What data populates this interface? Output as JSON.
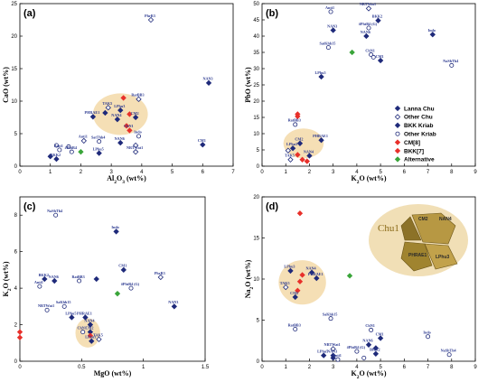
{
  "colors": {
    "lanna": "#1f2a7a",
    "other_chu": "#1f2a7a",
    "bkk": "#1f2a7a",
    "cm": "#e8302a",
    "bkk7": "#e8302a",
    "alternative": "#3aa53a",
    "cluster": "#f3d9a8"
  },
  "legend": [
    {
      "label": "Lanna Chu",
      "marker": "diamond-filled",
      "color": "#1f2a7a"
    },
    {
      "label": "Other Chu",
      "marker": "diamond-open",
      "color": "#1f2a7a"
    },
    {
      "label": "BKK Kriab",
      "marker": "diamond-filled",
      "color": "#1f2a7a"
    },
    {
      "label": "Other Kriab",
      "marker": "circle-open",
      "color": "#1f2a7a"
    },
    {
      "label": "CM[8]",
      "marker": "diamond-filled",
      "color": "#e8302a"
    },
    {
      "label": "BKK[7]",
      "marker": "diamond-filled",
      "color": "#e8302a"
    },
    {
      "label": "Alternative",
      "marker": "diamond-filled",
      "color": "#3aa53a"
    }
  ],
  "inset": {
    "title": "Chu1",
    "labels": [
      "CM2",
      "NAN4",
      "PHRAE1",
      "LPhu3"
    ]
  },
  "chart_data": [
    {
      "type": "scatter",
      "panel": "(a)",
      "xlabel": "Al2O3 (wt%)",
      "ylabel": "CaO (wt%)",
      "xlim": [
        0,
        7
      ],
      "ylim": [
        0,
        25
      ],
      "xticks": [
        0,
        1,
        2,
        3,
        4,
        5,
        6,
        7
      ],
      "yticks": [
        0,
        5,
        10,
        15,
        20,
        25
      ],
      "points": [
        {
          "x": 4.3,
          "y": 22.5,
          "label": "PhrR3",
          "m": "open"
        },
        {
          "x": 6.2,
          "y": 12.8,
          "label": "NAN3",
          "m": "filled"
        },
        {
          "x": 3.4,
          "y": 10.5,
          "label": "",
          "m": "red"
        },
        {
          "x": 3.9,
          "y": 10.3,
          "label": "RatBB3",
          "m": "open"
        },
        {
          "x": 2.9,
          "y": 9.0,
          "label": "TAK5",
          "m": "open"
        },
        {
          "x": 3.3,
          "y": 8.6,
          "label": "LPhu3",
          "m": "filled"
        },
        {
          "x": 2.8,
          "y": 8.2,
          "label": "",
          "m": "filled"
        },
        {
          "x": 3.6,
          "y": 8.0,
          "label": "",
          "m": "red"
        },
        {
          "x": 3.8,
          "y": 7.5,
          "label": "CM2",
          "m": "filled"
        },
        {
          "x": 3.2,
          "y": 7.2,
          "label": "NAN4",
          "m": "filled"
        },
        {
          "x": 2.4,
          "y": 7.6,
          "label": "PHRAE1",
          "m": "filled"
        },
        {
          "x": 3.5,
          "y": 6.2,
          "label": "",
          "m": "red"
        },
        {
          "x": 3.6,
          "y": 5.5,
          "label": "ChN1",
          "m": "red"
        },
        {
          "x": 3.9,
          "y": 4.6,
          "label": "Indo",
          "m": "circle"
        },
        {
          "x": 6.0,
          "y": 3.3,
          "label": "CM1",
          "m": "filled"
        },
        {
          "x": 2.6,
          "y": 3.8,
          "label": "SatThh4",
          "m": "circle"
        },
        {
          "x": 3.3,
          "y": 3.6,
          "label": "NAN6",
          "m": "filled"
        },
        {
          "x": 3.8,
          "y": 3.2,
          "label": "",
          "m": "open"
        },
        {
          "x": 2.1,
          "y": 3.9,
          "label": "Anti1",
          "m": "open"
        },
        {
          "x": 1.2,
          "y": 3.2,
          "label": "",
          "m": "circle"
        },
        {
          "x": 1.6,
          "y": 3.0,
          "label": "",
          "m": "circle"
        },
        {
          "x": 1.3,
          "y": 2.5,
          "label": "Anti1",
          "m": "circle"
        },
        {
          "x": 1.7,
          "y": 2.2,
          "label": "#PhtB4",
          "m": "circle"
        },
        {
          "x": 2.0,
          "y": 2.2,
          "label": "",
          "m": "green"
        },
        {
          "x": 2.6,
          "y": 2.0,
          "label": "LPhu5",
          "m": "filled"
        },
        {
          "x": 3.8,
          "y": 2.2,
          "label": "NRTWat1",
          "m": "open"
        },
        {
          "x": 1.0,
          "y": 1.5,
          "label": "",
          "m": "filled"
        },
        {
          "x": 1.2,
          "y": 1.1,
          "label": "BKK2",
          "m": "filled"
        }
      ]
    },
    {
      "type": "scatter",
      "panel": "(b)",
      "xlabel": "K2O (wt%)",
      "ylabel": "PbO (wt%)",
      "xlim": [
        0,
        9
      ],
      "ylim": [
        0,
        50
      ],
      "xticks": [
        0,
        1,
        2,
        3,
        4,
        5,
        6,
        7,
        8,
        9
      ],
      "yticks": [
        0,
        5,
        10,
        15,
        20,
        25,
        30,
        35,
        40,
        45,
        50
      ],
      "points": [
        {
          "x": 2.9,
          "y": 47.5,
          "label": "Anti1",
          "m": "circle"
        },
        {
          "x": 4.5,
          "y": 48.5,
          "label": "NRTWat1",
          "m": "open"
        },
        {
          "x": 4.9,
          "y": 44.8,
          "label": "BKK2",
          "m": "filled"
        },
        {
          "x": 4.5,
          "y": 42.5,
          "label": "#PhtB4 (G)",
          "m": "circle"
        },
        {
          "x": 3.0,
          "y": 41.8,
          "label": "NAN3",
          "m": "filled"
        },
        {
          "x": 4.4,
          "y": 40.0,
          "label": "NAN6",
          "m": "filled"
        },
        {
          "x": 7.2,
          "y": 40.5,
          "label": "Indo",
          "m": "filled"
        },
        {
          "x": 2.8,
          "y": 36.5,
          "label": "SatKhh15",
          "m": "circle"
        },
        {
          "x": 4.6,
          "y": 34.3,
          "label": "ChN1",
          "m": "circle"
        },
        {
          "x": 3.8,
          "y": 35.0,
          "label": "",
          "m": "green"
        },
        {
          "x": 4.7,
          "y": 33.5,
          "label": "",
          "m": "circle"
        },
        {
          "x": 5.0,
          "y": 32.5,
          "label": "CM1",
          "m": "filled"
        },
        {
          "x": 8.0,
          "y": 31.0,
          "label": "NaShTh4",
          "m": "circle"
        },
        {
          "x": 2.5,
          "y": 27.5,
          "label": "LPhu5",
          "m": "filled"
        },
        {
          "x": 1.5,
          "y": 16.0,
          "label": "",
          "m": "red"
        },
        {
          "x": 1.5,
          "y": 15.3,
          "label": "",
          "m": "red"
        },
        {
          "x": 1.4,
          "y": 12.8,
          "label": "RatBB3",
          "m": "circle"
        },
        {
          "x": 2.5,
          "y": 8.0,
          "label": "PHRAE1",
          "m": "filled"
        },
        {
          "x": 1.6,
          "y": 7.0,
          "label": "CM2",
          "m": "filled"
        },
        {
          "x": 1.3,
          "y": 5.5,
          "label": "LPhu3",
          "m": "filled"
        },
        {
          "x": 1.1,
          "y": 4.8,
          "label": "",
          "m": "open"
        },
        {
          "x": 1.5,
          "y": 3.5,
          "label": "",
          "m": "red"
        },
        {
          "x": 2.0,
          "y": 3.2,
          "label": "NAN4",
          "m": "filled"
        },
        {
          "x": 1.7,
          "y": 2.0,
          "label": "",
          "m": "red"
        },
        {
          "x": 1.9,
          "y": 1.5,
          "label": "",
          "m": "red"
        },
        {
          "x": 1.2,
          "y": 2.0,
          "label": "TAK5",
          "m": "open"
        }
      ]
    },
    {
      "type": "scatter",
      "panel": "(c)",
      "xlabel": "MgO (wt%)",
      "ylabel": "K2O (wt%)",
      "xlim": [
        0,
        1.5
      ],
      "ylim": [
        0,
        9
      ],
      "xticks": [
        0,
        0.5,
        1,
        1.5
      ],
      "yticks": [
        0,
        2,
        4,
        6,
        8
      ],
      "points": [
        {
          "x": 0.29,
          "y": 8.0,
          "label": "NaShTh4",
          "m": "circle"
        },
        {
          "x": 0.78,
          "y": 7.1,
          "label": "Indo",
          "m": "filled"
        },
        {
          "x": 0.84,
          "y": 5.0,
          "label": "CM1",
          "m": "filled"
        },
        {
          "x": 1.14,
          "y": 4.6,
          "label": "PhrR3",
          "m": "open"
        },
        {
          "x": 0.2,
          "y": 4.5,
          "label": "BKK2",
          "m": "filled"
        },
        {
          "x": 0.28,
          "y": 4.4,
          "label": "NAN6",
          "m": "filled"
        },
        {
          "x": 0.48,
          "y": 4.4,
          "label": "RatBB3",
          "m": "circle"
        },
        {
          "x": 0.16,
          "y": 4.1,
          "label": "Anti1",
          "m": "circle"
        },
        {
          "x": 0.62,
          "y": 4.5,
          "label": "",
          "m": "filled"
        },
        {
          "x": 0.9,
          "y": 4.0,
          "label": "#PhtB4 (G)",
          "m": "circle"
        },
        {
          "x": 0.79,
          "y": 3.7,
          "label": "",
          "m": "green"
        },
        {
          "x": 0.36,
          "y": 3.0,
          "label": "SaKhh15",
          "m": "circle"
        },
        {
          "x": 0.22,
          "y": 2.8,
          "label": "NRTWat1",
          "m": "circle"
        },
        {
          "x": 1.25,
          "y": 3.0,
          "label": "NAN3",
          "m": "filled"
        },
        {
          "x": 0.42,
          "y": 2.4,
          "label": "LPhu5",
          "m": "filled"
        },
        {
          "x": 0.53,
          "y": 2.4,
          "label": "PHRAE1",
          "m": "filled"
        },
        {
          "x": 0.57,
          "y": 2.0,
          "label": "NAN4",
          "m": "filled"
        },
        {
          "x": 0.51,
          "y": 1.6,
          "label": "ChN1",
          "m": "circle"
        },
        {
          "x": 0.57,
          "y": 1.6,
          "label": "CM2",
          "m": "filled"
        },
        {
          "x": 0.57,
          "y": 1.4,
          "label": "",
          "m": "red"
        },
        {
          "x": 0.58,
          "y": 1.1,
          "label": "LPhu3",
          "m": "filled"
        },
        {
          "x": 0.64,
          "y": 1.2,
          "label": "TAK5",
          "m": "open"
        },
        {
          "x": 0.0,
          "y": 1.6,
          "label": "",
          "m": "red"
        },
        {
          "x": 0.0,
          "y": 1.3,
          "label": "",
          "m": "red"
        }
      ]
    },
    {
      "type": "scatter",
      "panel": "(d)",
      "xlabel": "K2O (wt%)",
      "ylabel": "Na2O (wt%)",
      "xlim": [
        0,
        9
      ],
      "ylim": [
        0,
        20
      ],
      "xticks": [
        0,
        1,
        2,
        3,
        4,
        5,
        6,
        7,
        8,
        9
      ],
      "yticks": [
        0,
        5,
        10,
        15,
        20
      ],
      "points": [
        {
          "x": 1.6,
          "y": 18.0,
          "label": "",
          "m": "red"
        },
        {
          "x": 1.2,
          "y": 11.0,
          "label": "LPhu3",
          "m": "filled"
        },
        {
          "x": 2.1,
          "y": 10.8,
          "label": "NAN4",
          "m": "filled"
        },
        {
          "x": 3.7,
          "y": 10.4,
          "label": "",
          "m": "green"
        },
        {
          "x": 2.3,
          "y": 10.1,
          "label": "PHRAE1",
          "m": "filled"
        },
        {
          "x": 1.7,
          "y": 10.5,
          "label": "",
          "m": "red"
        },
        {
          "x": 1.6,
          "y": 9.7,
          "label": "",
          "m": "red"
        },
        {
          "x": 1.5,
          "y": 8.6,
          "label": "",
          "m": "red"
        },
        {
          "x": 1.0,
          "y": 9.0,
          "label": "TAK5",
          "m": "open"
        },
        {
          "x": 1.4,
          "y": 7.8,
          "label": "CM2",
          "m": "filled"
        },
        {
          "x": 2.9,
          "y": 5.2,
          "label": "SaKhh15",
          "m": "circle"
        },
        {
          "x": 1.4,
          "y": 3.9,
          "label": "RatBB3",
          "m": "circle"
        },
        {
          "x": 4.6,
          "y": 3.8,
          "label": "ChN1",
          "m": "circle"
        },
        {
          "x": 7.0,
          "y": 3.0,
          "label": "Indo",
          "m": "circle"
        },
        {
          "x": 5.0,
          "y": 2.8,
          "label": "CM1",
          "m": "filled"
        },
        {
          "x": 4.5,
          "y": 2.0,
          "label": "NAN6",
          "m": "filled"
        },
        {
          "x": 4.8,
          "y": 1.6,
          "label": "",
          "m": "filled"
        },
        {
          "x": 3.0,
          "y": 1.5,
          "label": "NRTWat1",
          "m": "open"
        },
        {
          "x": 4.0,
          "y": 1.2,
          "label": "#PhtB4 (G)",
          "m": "circle"
        },
        {
          "x": 4.8,
          "y": 0.9,
          "label": "BKK2",
          "m": "filled"
        },
        {
          "x": 2.6,
          "y": 0.7,
          "label": "LPhu5",
          "m": "filled"
        },
        {
          "x": 3.0,
          "y": 0.7,
          "label": "NAN3",
          "m": "filled"
        },
        {
          "x": 3.0,
          "y": 0.4,
          "label": "",
          "m": "filled"
        },
        {
          "x": 4.3,
          "y": 0.4,
          "label": "",
          "m": "circle"
        },
        {
          "x": 7.9,
          "y": 0.8,
          "label": "NaShTh4",
          "m": "circle"
        },
        {
          "x": 3.2,
          "y": 0.2,
          "label": "Anti1",
          "m": "circle"
        }
      ]
    }
  ]
}
